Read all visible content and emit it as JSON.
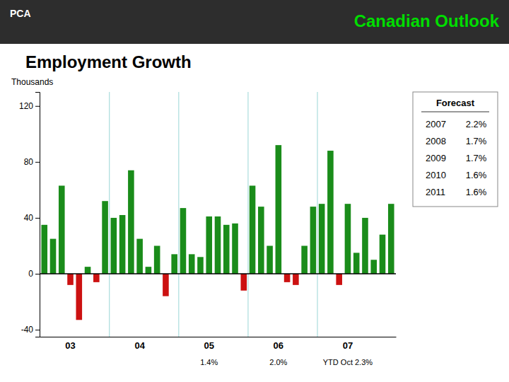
{
  "chart_data": {
    "type": "bar",
    "header": "Canadian Outlook",
    "logo": "PCA",
    "title": "Employment Growth",
    "ylabel": "Thousands",
    "categories": [
      null,
      null,
      null,
      "03",
      null,
      null,
      null,
      null,
      null,
      null,
      null,
      "04",
      null,
      null,
      null,
      null,
      null,
      null,
      null,
      "05",
      null,
      null,
      null,
      null,
      null,
      null,
      null,
      "06",
      null,
      null,
      null,
      null,
      null,
      null,
      null,
      "07",
      null,
      null,
      null,
      null,
      null
    ],
    "values": [
      35,
      25,
      63,
      -8,
      -33,
      5,
      -6,
      52,
      40,
      42,
      74,
      25,
      5,
      20,
      -16,
      14,
      47,
      14,
      12,
      41,
      41,
      35,
      36,
      -12,
      63,
      48,
      20,
      92,
      -6,
      -8,
      20,
      48,
      50,
      88,
      -8,
      50,
      15,
      40,
      10,
      28,
      50
    ],
    "colors": [
      "#1a8c1a",
      "#1a8c1a",
      "#1a8c1a",
      "#cc1111",
      "#cc1111",
      "#1a8c1a",
      "#cc1111",
      "#1a8c1a",
      "#1a8c1a",
      "#1a8c1a",
      "#1a8c1a",
      "#1a8c1a",
      "#1a8c1a",
      "#1a8c1a",
      "#cc1111",
      "#1a8c1a",
      "#1a8c1a",
      "#1a8c1a",
      "#1a8c1a",
      "#1a8c1a",
      "#1a8c1a",
      "#1a8c1a",
      "#1a8c1a",
      "#cc1111",
      "#1a8c1a",
      "#1a8c1a",
      "#1a8c1a",
      "#1a8c1a",
      "#cc1111",
      "#cc1111",
      "#1a8c1a",
      "#1a8c1a",
      "#1a8c1a",
      "#1a8c1a",
      "#cc1111",
      "#1a8c1a",
      "#1a8c1a",
      "#1a8c1a",
      "#1a8c1a",
      "#1a8c1a",
      "#1a8c1a"
    ],
    "ylim": [
      -45,
      130
    ],
    "yticks": [
      -40,
      0,
      40,
      80,
      120
    ],
    "grid": false,
    "annotations": [
      {
        "category": "05",
        "text": "1.4%"
      },
      {
        "category": "06",
        "text": "2.0%"
      },
      {
        "category": "07",
        "text": "YTD Oct 2.3%"
      }
    ],
    "table": {
      "title": "Forecast",
      "rows": [
        {
          "label": "2007",
          "value": "2.2%"
        },
        {
          "label": "2008",
          "value": "1.7%"
        },
        {
          "label": "2009",
          "value": "1.7%"
        },
        {
          "label": "2010",
          "value": "1.6%"
        },
        {
          "label": "2011",
          "value": "1.6%"
        }
      ]
    }
  }
}
